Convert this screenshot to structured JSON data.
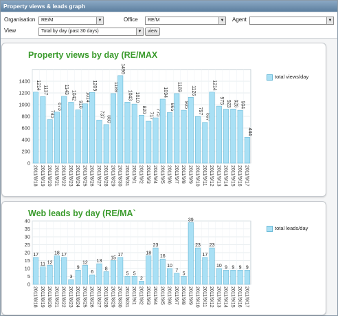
{
  "window": {
    "title": "Property views & leads graph"
  },
  "filters": {
    "organisation_label": "Organisation",
    "organisation_value": "RE/M",
    "office_label": "Office",
    "office_value": "RE/M",
    "agent_label": "Agent",
    "view_label": "View",
    "view_value": "Total by day (past 30 days)",
    "view_button": "view"
  },
  "colors": {
    "bar_fill": "#a9e0f5",
    "bar_stroke": "#6ab9d6",
    "title_green": "#3a9b2c",
    "titlebar": "#6f90b0"
  },
  "chart_data": [
    {
      "type": "bar",
      "title": "Property views by day (RE/MAX",
      "legend": "total views/day",
      "legend_position": "right",
      "grid": true,
      "ylim": [
        0,
        1600
      ],
      "yticks": [
        0,
        200,
        400,
        600,
        800,
        1000,
        1200,
        1400
      ],
      "categories": [
        "2011/8/18",
        "2011/8/19",
        "2011/8/20",
        "2011/8/21",
        "2011/8/22",
        "2011/8/23",
        "2011/8/24",
        "2011/8/25",
        "2011/8/26",
        "2011/8/27",
        "2011/8/28",
        "2011/8/29",
        "2011/8/30",
        "2011/8/31",
        "2011/9/1",
        "2011/9/2",
        "2011/9/3",
        "2011/9/4",
        "2011/9/5",
        "2011/9/6",
        "2011/9/7",
        "2011/9/8",
        "2011/9/9",
        "2011/9/10",
        "2011/9/11",
        "2011/9/12",
        "2011/9/13",
        "2011/9/14",
        "2011/9/15",
        "2011/9/16",
        "2011/9/17"
      ],
      "values": [
        1214,
        1137,
        745,
        873,
        1143,
        1042,
        910,
        1014,
        1209,
        737,
        660,
        1189,
        1496,
        1043,
        1010,
        820,
        717,
        775,
        1094,
        865,
        1189,
        905,
        1126,
        797,
        697,
        1214,
        975,
        923,
        926,
        904,
        444
      ]
    },
    {
      "type": "bar",
      "title": "Web leads by day (RE/MA`",
      "legend": "total leads/day",
      "legend_position": "right",
      "grid": true,
      "ylim": [
        0,
        40
      ],
      "yticks": [
        0,
        5,
        10,
        15,
        20,
        25,
        30,
        35,
        40
      ],
      "categories": [
        "2011/8/18",
        "2011/8/19",
        "2011/8/20",
        "2011/8/21",
        "2011/8/22",
        "2011/8/23",
        "2011/8/24",
        "2011/8/25",
        "2011/8/26",
        "2011/8/27",
        "2011/8/28",
        "2011/8/29",
        "2011/8/30",
        "2011/8/31",
        "2011/9/1",
        "2011/9/2",
        "2011/9/3",
        "2011/9/4",
        "2011/9/5",
        "2011/9/6",
        "2011/9/7",
        "2011/9/8",
        "2011/9/9",
        "2011/9/10",
        "2011/9/11",
        "2011/9/12",
        "2011/9/13",
        "2011/9/14",
        "2011/9/15",
        "2011/9/16",
        "2011/9/17"
      ],
      "values": [
        17,
        11,
        12,
        18,
        17,
        3,
        9,
        12,
        6,
        13,
        8,
        15,
        17,
        5,
        5,
        2,
        18,
        23,
        16,
        10,
        7,
        5,
        39,
        23,
        17,
        23,
        10,
        9,
        9,
        9,
        9
      ]
    }
  ]
}
